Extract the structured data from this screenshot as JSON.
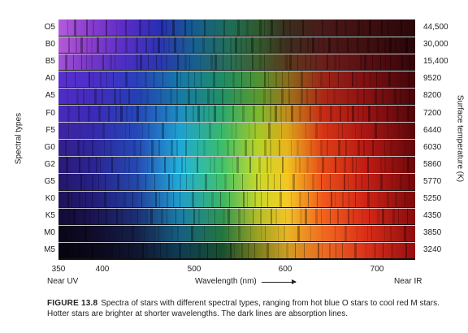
{
  "labels": {
    "left_axis": "Spectral types",
    "right_axis": "Surface temperature (K)",
    "x_axis": "Wavelength (nm)",
    "near_uv": "Near UV",
    "near_ir": "Near IR"
  },
  "ticks": [
    "350",
    "400",
    "500",
    "600",
    "700"
  ],
  "types": [
    "O5",
    "B0",
    "B5",
    "A0",
    "A5",
    "F0",
    "F5",
    "G0",
    "G2",
    "G5",
    "K0",
    "K5",
    "M0",
    "M5"
  ],
  "temps": [
    "44,500",
    "30,000",
    "15,400",
    "9520",
    "8200",
    "7200",
    "6440",
    "6030",
    "5860",
    "5770",
    "5250",
    "4350",
    "3850",
    "3240"
  ],
  "caption": {
    "lead": "FIGURE 13.8",
    "text": "Spectra of stars with different spectral types, ranging from hot blue O stars to cool red M stars. Hotter stars are brighter at shorter wavelengths. The dark lines are absorption lines."
  },
  "colors": {
    "background": "#ffffff",
    "text": "#222222"
  }
}
